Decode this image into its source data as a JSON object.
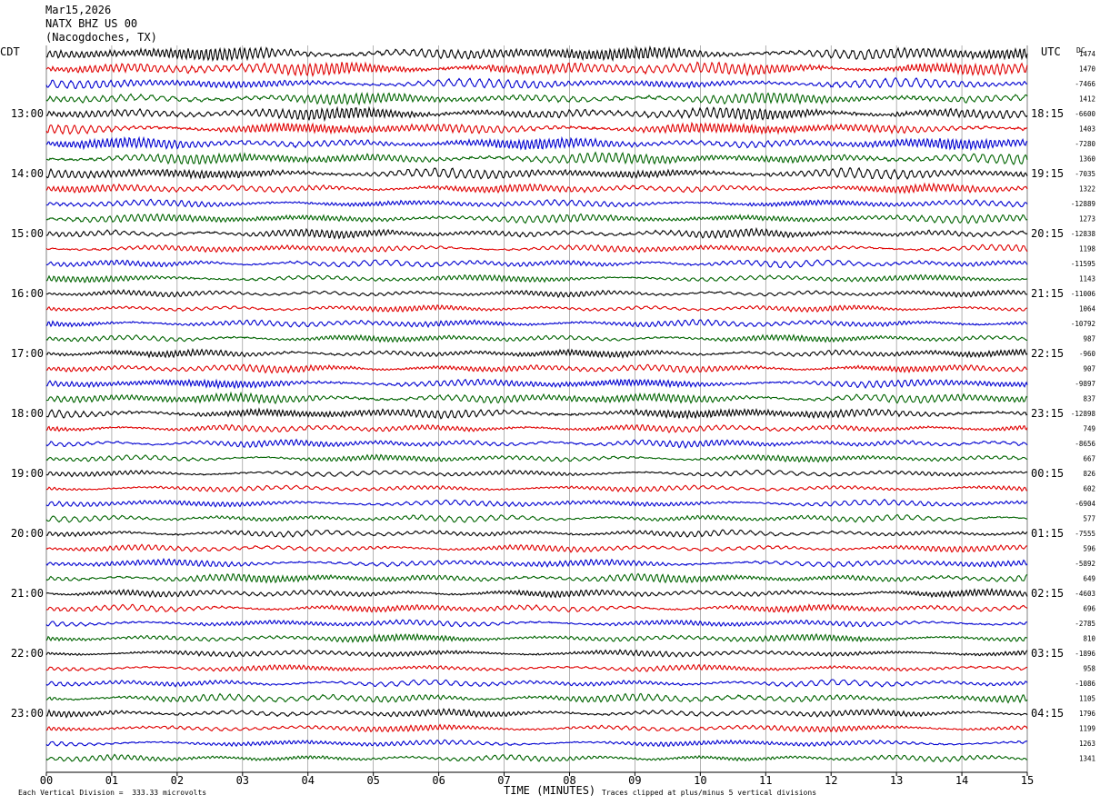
{
  "header": {
    "date": "Mar15,2026",
    "station": "NATX BHZ US 00",
    "location": "(Nacogdoches, TX)"
  },
  "left_tz": "CDT",
  "right_tz": "UTC",
  "dc_label": "DC",
  "footer": {
    "scale_note": "Each Vertical Division =  333.33 microvolts",
    "xlabel": "TIME (MINUTES)",
    "clip_note": "Traces clipped at plus/minus 5 vertical divisions"
  },
  "colors": {
    "cycle": [
      "#000000",
      "#e00000",
      "#0000d0",
      "#006400"
    ],
    "grid": "#808080"
  },
  "chart_data": {
    "type": "line",
    "title": "NATX BHZ US 00",
    "xlabel": "TIME (MINUTES)",
    "xlim": [
      0,
      15
    ],
    "x_ticks": [
      "00",
      "01",
      "02",
      "03",
      "04",
      "05",
      "06",
      "07",
      "08",
      "09",
      "10",
      "11",
      "12",
      "13",
      "14",
      "15"
    ],
    "rows_per_hour": 4,
    "start_hour_local": "12:00",
    "left_hour_labels": [
      {
        "row": 4,
        "label": "13:00"
      },
      {
        "row": 8,
        "label": "14:00"
      },
      {
        "row": 12,
        "label": "15:00"
      },
      {
        "row": 16,
        "label": "16:00"
      },
      {
        "row": 20,
        "label": "17:00"
      },
      {
        "row": 24,
        "label": "18:00"
      },
      {
        "row": 28,
        "label": "19:00"
      },
      {
        "row": 32,
        "label": "20:00"
      },
      {
        "row": 36,
        "label": "21:00"
      },
      {
        "row": 40,
        "label": "22:00"
      },
      {
        "row": 44,
        "label": "23:00"
      }
    ],
    "right_hour_labels": [
      {
        "row": 4,
        "label": "18:15"
      },
      {
        "row": 8,
        "label": "19:15"
      },
      {
        "row": 12,
        "label": "20:15"
      },
      {
        "row": 16,
        "label": "21:15"
      },
      {
        "row": 20,
        "label": "22:15"
      },
      {
        "row": 24,
        "label": "23:15"
      },
      {
        "row": 28,
        "label": "00:15"
      },
      {
        "row": 32,
        "label": "01:15"
      },
      {
        "row": 36,
        "label": "02:15"
      },
      {
        "row": 40,
        "label": "03:15"
      },
      {
        "row": 44,
        "label": "04:15"
      }
    ],
    "dc_offsets": [
      "1474",
      "1470",
      "-7466",
      "1412",
      "-6600",
      "1403",
      "-7280",
      "1360",
      "-7035",
      "1322",
      "-12889",
      "1273",
      "-12838",
      "1198",
      "-11595",
      "1143",
      "-11006",
      "1064",
      "-10792",
      "987",
      "-960",
      "907",
      "-9897",
      "837",
      "-12898",
      "749",
      "-8656",
      "667",
      "826",
      "602",
      "-6904",
      "577",
      "-7555",
      "596",
      "-5892",
      "649",
      "-4603",
      "696",
      "-2785",
      "810",
      "-1896",
      "958",
      "-1086",
      "1105",
      "1796",
      "1199",
      "1263",
      "1341"
    ],
    "amplitude_envelope": [
      1.0,
      1.0,
      0.7,
      0.8,
      0.9,
      0.8,
      0.8,
      0.8,
      0.8,
      0.6,
      0.5,
      0.6,
      0.6,
      0.5,
      0.5,
      0.45,
      0.4,
      0.4,
      0.5,
      0.45,
      0.5,
      0.55,
      0.6,
      0.7,
      0.7,
      0.5,
      0.5,
      0.45,
      0.4,
      0.4,
      0.45,
      0.45,
      0.45,
      0.45,
      0.5,
      0.6,
      0.5,
      0.5,
      0.45,
      0.5,
      0.45,
      0.4,
      0.45,
      0.6,
      0.5,
      0.45,
      0.4,
      0.4
    ]
  }
}
